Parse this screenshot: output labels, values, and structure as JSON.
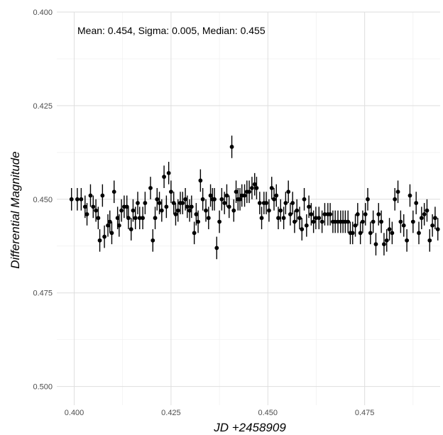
{
  "chart_data": {
    "type": "scatter",
    "title": "",
    "annotation": "Mean: 0.454, Sigma: 0.005, Median: 0.455",
    "xlabel": "JD +2458909",
    "ylabel": "Differential Magnitude",
    "xlim": [
      0.3955,
      0.4945
    ],
    "ylim": [
      0.4,
      0.505
    ],
    "y_inverted": true,
    "x_ticks": [
      "0.400",
      "0.425",
      "0.450",
      "0.475"
    ],
    "y_ticks": [
      "0.400",
      "0.425",
      "0.450",
      "0.475",
      "0.500"
    ],
    "grid": true,
    "point_color": "#000000",
    "error_bar": 0.003,
    "points": [
      [
        0.3993,
        0.45
      ],
      [
        0.4008,
        0.45
      ],
      [
        0.4018,
        0.45
      ],
      [
        0.4028,
        0.452
      ],
      [
        0.4033,
        0.454
      ],
      [
        0.4042,
        0.449
      ],
      [
        0.4049,
        0.452
      ],
      [
        0.4056,
        0.453
      ],
      [
        0.4062,
        0.455
      ],
      [
        0.4066,
        0.461
      ],
      [
        0.4073,
        0.449
      ],
      [
        0.4078,
        0.46
      ],
      [
        0.4087,
        0.457
      ],
      [
        0.4092,
        0.456
      ],
      [
        0.4097,
        0.459
      ],
      [
        0.4103,
        0.448
      ],
      [
        0.4112,
        0.455
      ],
      [
        0.4116,
        0.457
      ],
      [
        0.4122,
        0.453
      ],
      [
        0.4129,
        0.452
      ],
      [
        0.4136,
        0.452
      ],
      [
        0.414,
        0.455
      ],
      [
        0.4147,
        0.458
      ],
      [
        0.4152,
        0.453
      ],
      [
        0.4158,
        0.455
      ],
      [
        0.4164,
        0.451
      ],
      [
        0.4169,
        0.455
      ],
      [
        0.4177,
        0.455
      ],
      [
        0.4183,
        0.451
      ],
      [
        0.4197,
        0.447
      ],
      [
        0.4203,
        0.461
      ],
      [
        0.4209,
        0.455
      ],
      [
        0.4214,
        0.45
      ],
      [
        0.422,
        0.451
      ],
      [
        0.4226,
        0.453
      ],
      [
        0.4232,
        0.444
      ],
      [
        0.4238,
        0.452
      ],
      [
        0.4244,
        0.443
      ],
      [
        0.425,
        0.448
      ],
      [
        0.4257,
        0.451
      ],
      [
        0.4262,
        0.454
      ],
      [
        0.4268,
        0.453
      ],
      [
        0.4274,
        0.451
      ],
      [
        0.428,
        0.451
      ],
      [
        0.4287,
        0.45
      ],
      [
        0.4292,
        0.452
      ],
      [
        0.4298,
        0.453
      ],
      [
        0.4303,
        0.452
      ],
      [
        0.431,
        0.459
      ],
      [
        0.4315,
        0.454
      ],
      [
        0.432,
        0.456
      ],
      [
        0.4326,
        0.445
      ],
      [
        0.4332,
        0.45
      ],
      [
        0.434,
        0.453
      ],
      [
        0.4347,
        0.455
      ],
      [
        0.4352,
        0.449
      ],
      [
        0.4357,
        0.45
      ],
      [
        0.4362,
        0.45
      ],
      [
        0.4368,
        0.463
      ],
      [
        0.4375,
        0.456
      ],
      [
        0.4381,
        0.45
      ],
      [
        0.4388,
        0.451
      ],
      [
        0.4394,
        0.449
      ],
      [
        0.44,
        0.452
      ],
      [
        0.4407,
        0.436
      ],
      [
        0.4412,
        0.453
      ],
      [
        0.4418,
        0.448
      ],
      [
        0.4423,
        0.45
      ],
      [
        0.4428,
        0.45
      ],
      [
        0.4433,
        0.449
      ],
      [
        0.444,
        0.449
      ],
      [
        0.4446,
        0.448
      ],
      [
        0.4452,
        0.448
      ],
      [
        0.4459,
        0.447
      ],
      [
        0.4466,
        0.446
      ],
      [
        0.4471,
        0.447
      ],
      [
        0.4479,
        0.451
      ],
      [
        0.4484,
        0.455
      ],
      [
        0.449,
        0.451
      ],
      [
        0.4496,
        0.451
      ],
      [
        0.4503,
        0.453
      ],
      [
        0.451,
        0.447
      ],
      [
        0.4516,
        0.45
      ],
      [
        0.4522,
        0.449
      ],
      [
        0.4527,
        0.455
      ],
      [
        0.4533,
        0.453
      ],
      [
        0.4541,
        0.455
      ],
      [
        0.4546,
        0.451
      ],
      [
        0.4553,
        0.448
      ],
      [
        0.4558,
        0.454
      ],
      [
        0.4564,
        0.451
      ],
      [
        0.4569,
        0.456
      ],
      [
        0.4575,
        0.453
      ],
      [
        0.4582,
        0.455
      ],
      [
        0.4588,
        0.458
      ],
      [
        0.4594,
        0.45
      ],
      [
        0.46,
        0.457
      ],
      [
        0.4606,
        0.452
      ],
      [
        0.4612,
        0.454
      ],
      [
        0.4618,
        0.456
      ],
      [
        0.4624,
        0.455
      ],
      [
        0.4632,
        0.455
      ],
      [
        0.464,
        0.456
      ],
      [
        0.4647,
        0.454
      ],
      [
        0.4655,
        0.454
      ],
      [
        0.4661,
        0.454
      ],
      [
        0.4668,
        0.456
      ],
      [
        0.4674,
        0.456
      ],
      [
        0.4681,
        0.456
      ],
      [
        0.4688,
        0.456
      ],
      [
        0.4694,
        0.456
      ],
      [
        0.47,
        0.456
      ],
      [
        0.4707,
        0.456
      ],
      [
        0.4713,
        0.459
      ],
      [
        0.4719,
        0.459
      ],
      [
        0.4726,
        0.457
      ],
      [
        0.4732,
        0.454
      ],
      [
        0.4739,
        0.459
      ],
      [
        0.4745,
        0.456
      ],
      [
        0.4752,
        0.454
      ],
      [
        0.4758,
        0.45
      ],
      [
        0.4765,
        0.459
      ],
      [
        0.4772,
        0.456
      ],
      [
        0.4779,
        0.462
      ],
      [
        0.4786,
        0.454
      ],
      [
        0.4793,
        0.456
      ],
      [
        0.48,
        0.462
      ],
      [
        0.4807,
        0.461
      ],
      [
        0.4814,
        0.458
      ],
      [
        0.4821,
        0.459
      ],
      [
        0.4828,
        0.45
      ],
      [
        0.4836,
        0.448
      ],
      [
        0.4843,
        0.456
      ],
      [
        0.4851,
        0.457
      ],
      [
        0.4859,
        0.461
      ],
      [
        0.4867,
        0.449
      ],
      [
        0.4875,
        0.456
      ],
      [
        0.4883,
        0.451
      ],
      [
        0.489,
        0.459
      ],
      [
        0.4897,
        0.455
      ],
      [
        0.4904,
        0.454
      ],
      [
        0.4911,
        0.453
      ],
      [
        0.4918,
        0.461
      ],
      [
        0.4925,
        0.457
      ],
      [
        0.4932,
        0.455
      ],
      [
        0.4939,
        0.458
      ]
    ]
  }
}
